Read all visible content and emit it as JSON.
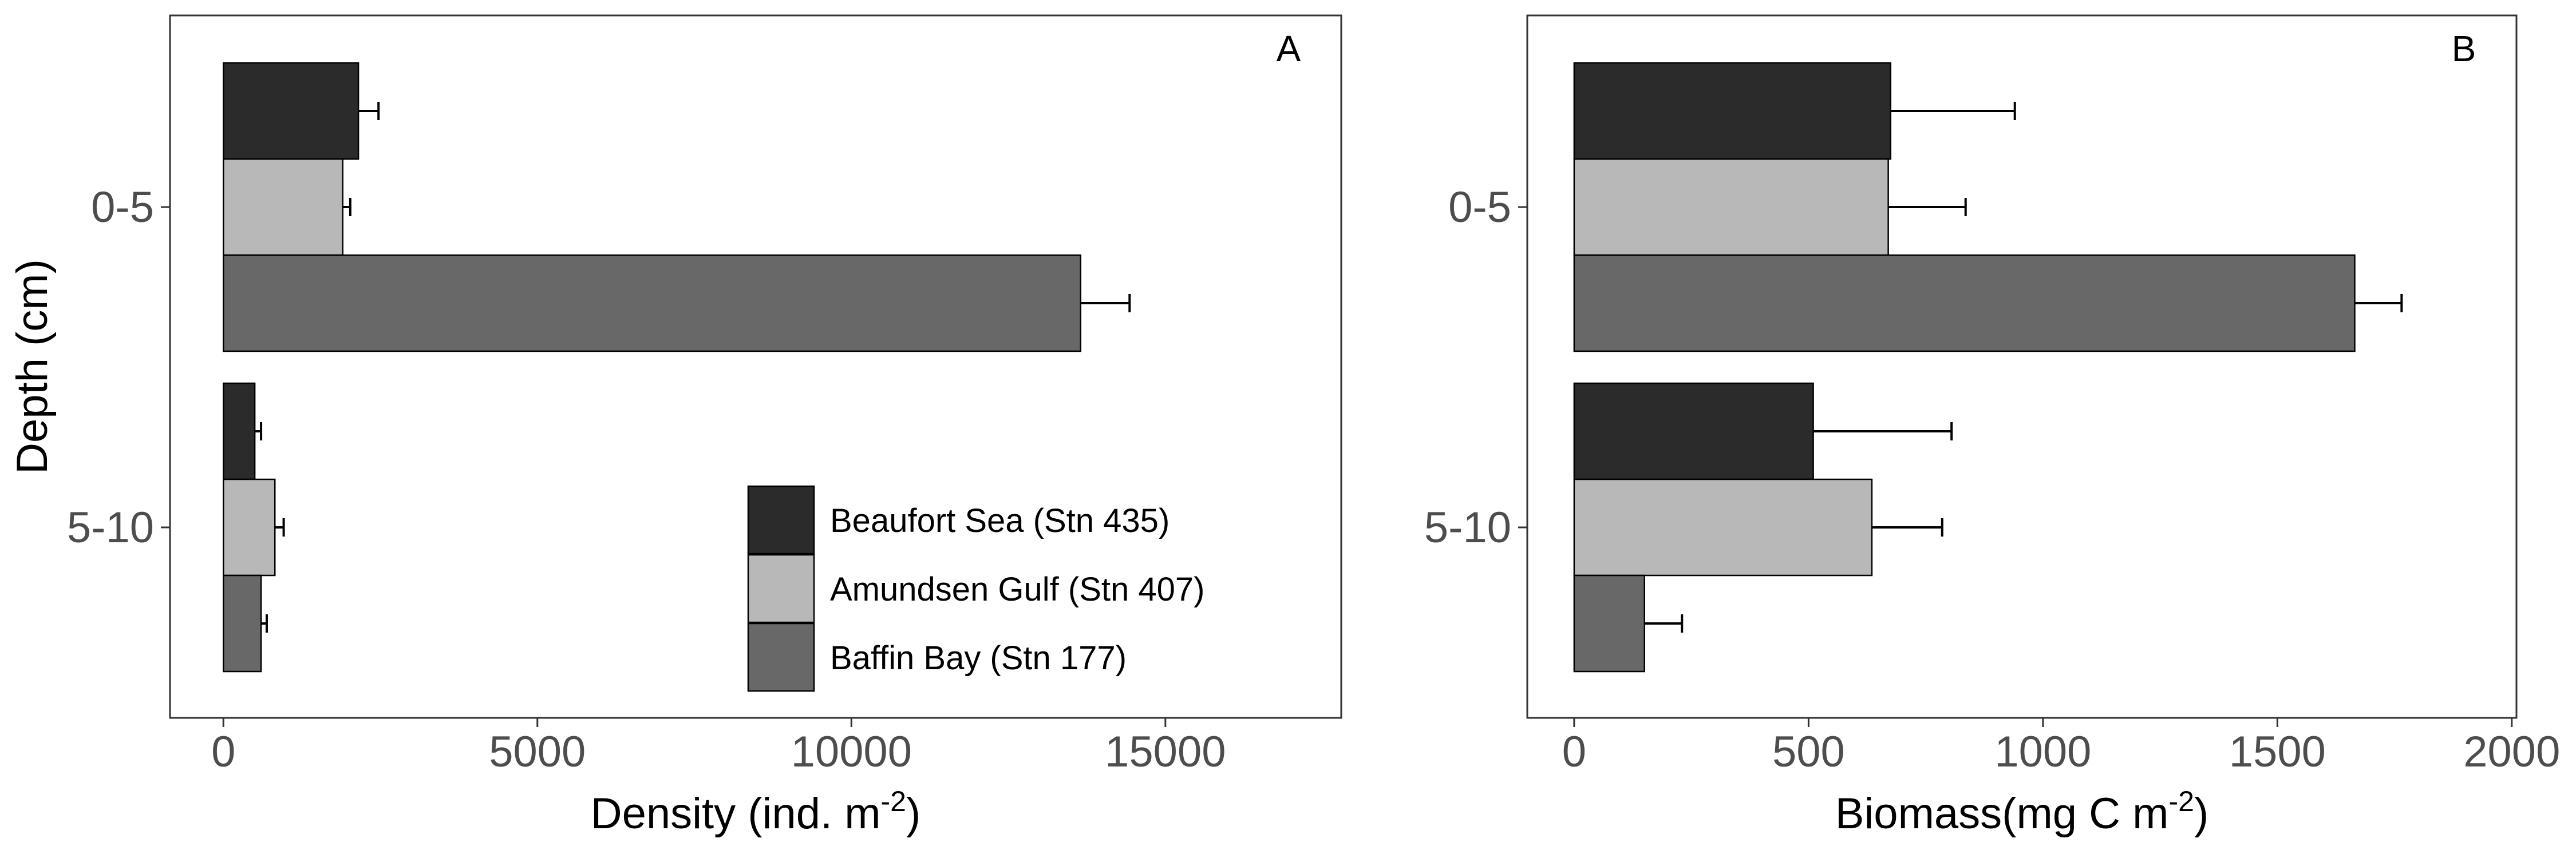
{
  "chart_data": [
    {
      "type": "bar",
      "orientation": "horizontal",
      "panel_label": "A",
      "xlabel": "Density (ind. m",
      "xlabel_sup": "-2",
      "xlabel_tail": ")",
      "ylabel": "Depth (cm)",
      "categories": [
        "0-5",
        "5-10"
      ],
      "xlim": [
        -850,
        17800
      ],
      "xticks": [
        0,
        5000,
        10000,
        15000
      ],
      "grid": false,
      "legend": "inside-bottom-right",
      "series": [
        {
          "name": "Beaufort Sea (Stn 435)",
          "color": "#2b2b2b",
          "values": [
            2150,
            500
          ],
          "errors": [
            320,
            100
          ]
        },
        {
          "name": "Amundsen Gulf (Stn 407)",
          "color": "#b8b8b8",
          "values": [
            1900,
            820
          ],
          "errors": [
            120,
            140
          ]
        },
        {
          "name": "Baffin Bay (Stn 177)",
          "color": "#686868",
          "values": [
            13650,
            600
          ],
          "errors": [
            780,
            90
          ]
        }
      ]
    },
    {
      "type": "bar",
      "orientation": "horizontal",
      "panel_label": "B",
      "xlabel": "Biomass(mg C m",
      "xlabel_sup": "-2",
      "xlabel_tail": ")",
      "ylabel": "",
      "categories": [
        "0-5",
        "5-10"
      ],
      "xlim": [
        -100,
        2010
      ],
      "xticks": [
        0,
        500,
        1000,
        1500,
        2000
      ],
      "grid": false,
      "series": [
        {
          "name": "Beaufort Sea (Stn 435)",
          "color": "#2b2b2b",
          "values": [
            675,
            510
          ],
          "errors": [
            265,
            295
          ]
        },
        {
          "name": "Amundsen Gulf (Stn 407)",
          "color": "#b8b8b8",
          "values": [
            670,
            635
          ],
          "errors": [
            165,
            150
          ]
        },
        {
          "name": "Baffin Bay (Stn 177)",
          "color": "#686868",
          "values": [
            1665,
            150
          ],
          "errors": [
            100,
            80
          ]
        }
      ]
    }
  ]
}
